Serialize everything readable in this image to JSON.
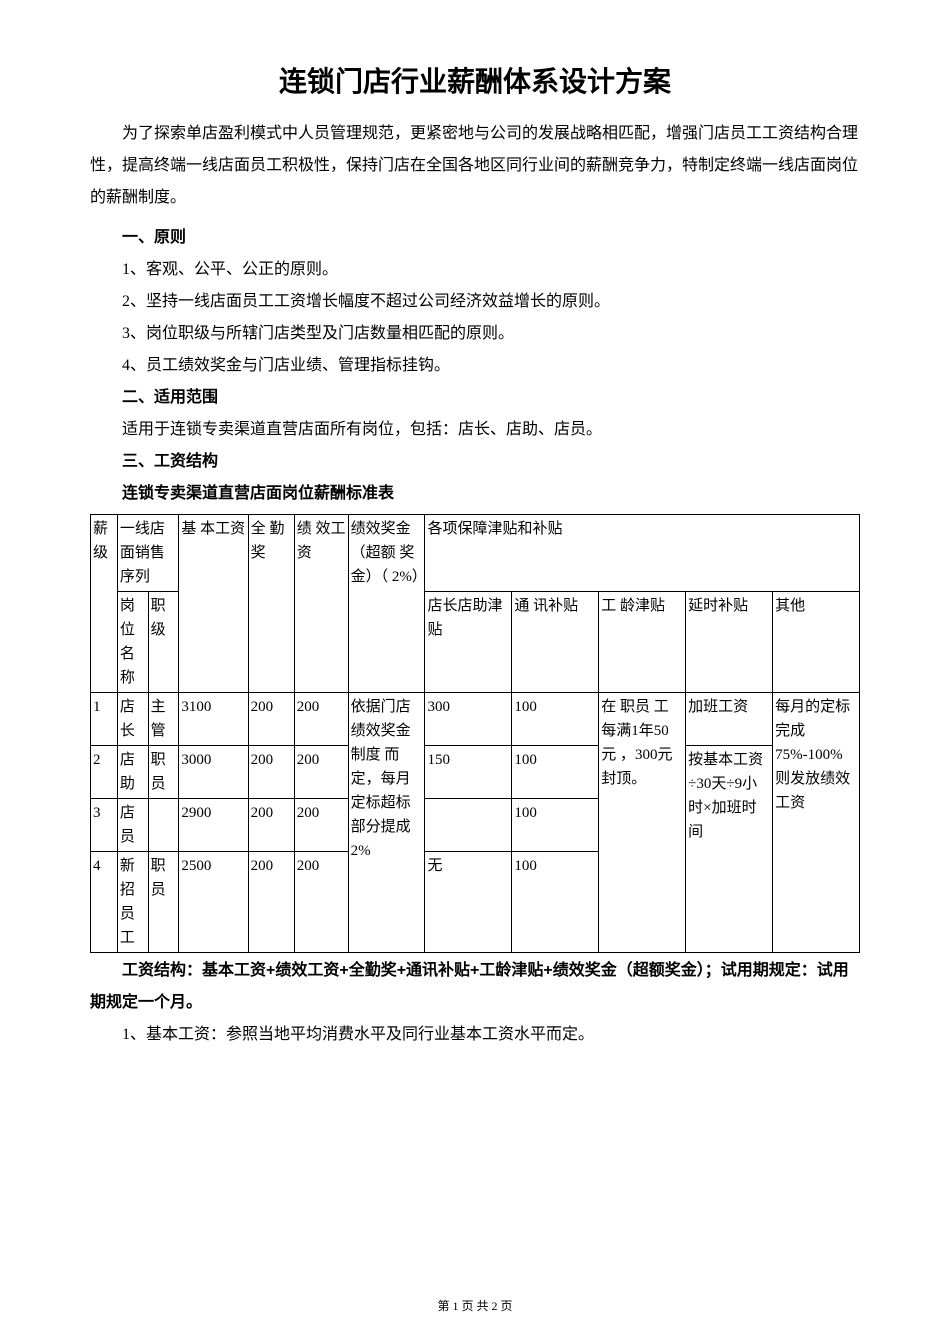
{
  "title": "连锁门店行业薪酬体系设计方案",
  "intro": "为了探索单店盈利模式中人员管理规范，更紧密地与公司的发展战略相匹配，增强门店员工工资结构合理性，提高终端一线店面员工积极性，保持门店在全国各地区同行业间的薪酬竞争力，特制定终端一线店面岗位的薪酬制度。",
  "sections": {
    "s1_heading": "一、原则",
    "s1_p1": "1、客观、公平、公正的原则。",
    "s1_p2": "2、坚持一线店面员工工资增长幅度不超过公司经济效益增长的原则。",
    "s1_p3": "3、岗位职级与所辖门店类型及门店数量相匹配的原则。",
    "s1_p4": "4、员工绩效奖金与门店业绩、管理指标挂钩。",
    "s2_heading": "二、适用范围",
    "s2_p1": "适用于连锁专卖渠道直营店面所有岗位，包括：店长、店助、店员。",
    "s3_heading": "三、工资结构",
    "s3_sub": "连锁专卖渠道直营店面岗位薪酬标准表"
  },
  "table": {
    "h_salary_level": "薪级",
    "h_frontline": "一线店面销售序列",
    "h_base": "基 本工资",
    "h_attend": "全 勤奖",
    "h_perf": "绩 效工资",
    "h_bonus": "绩效奖金（超额 奖金）（ 2%）",
    "h_allowance": "各项保障津贴和补贴",
    "h_position": "岗 位名称",
    "h_rank": "职级",
    "h_manager_allow": "店长店助津贴",
    "h_comm_allow": "通 讯补贴",
    "h_seniority": "工 龄津贴",
    "h_ot": "延时补贴",
    "h_other": "其他",
    "rows": [
      {
        "no": "1",
        "pos": "店长",
        "rank": "主管",
        "base": "3100",
        "attend": "200",
        "perf": "200",
        "manager": "300",
        "comm": "100"
      },
      {
        "no": "2",
        "pos": "店助",
        "rank": "职员",
        "base": "3000",
        "attend": "200",
        "perf": "200",
        "manager": "150",
        "comm": "100"
      },
      {
        "no": "3",
        "pos": "店员",
        "rank": "",
        "base": "2900",
        "attend": "200",
        "perf": "200",
        "manager": "",
        "comm": "100"
      },
      {
        "no": "4",
        "pos": "新 招员工",
        "rank": "职员",
        "base": "2500",
        "attend": "200",
        "perf": "200",
        "manager": "无",
        "comm": "100"
      }
    ],
    "bonus_text": "依据门店绩效奖金制度 而定，每月定标超标部分提成2%",
    "seniority_text": "在 职员 工每满1年50元 ，300元 封顶。",
    "ot_text1": "加班工资",
    "ot_text2": "按基本工资 ÷30天÷9小时×加班时间",
    "other_text": "每月的定标完成75%-100%则发放绩效工资"
  },
  "structure_note": "工资结构：基本工资+绩效工资+全勤奖+通讯补贴+工龄津贴+绩效奖金（超额奖金）；试用期规定：试用期规定一个月。",
  "note1": "1、基本工资：参照当地平均消费水平及同行业基本工资水平而定。",
  "page_number": "第 1 页 共 2 页"
}
